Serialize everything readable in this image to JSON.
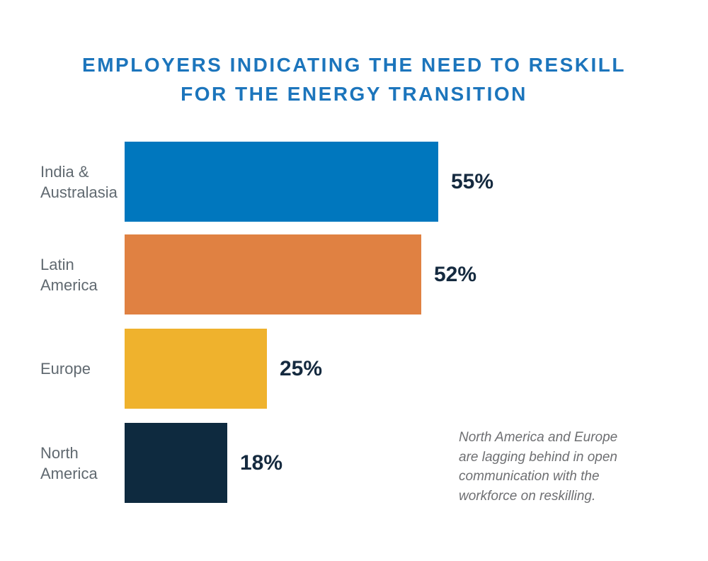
{
  "title": {
    "text": "EMPLOYERS INDICATING THE NEED TO RESKILL\nFOR THE ENERGY TRANSITION",
    "color": "#1C75BC"
  },
  "colors": {
    "label_text": "#606970",
    "value_text": "#152A3F",
    "note_text": "#6E6F72",
    "background": "#FFFFFF"
  },
  "chart_data": {
    "type": "bar",
    "orientation": "horizontal",
    "title": "EMPLOYERS INDICATING THE NEED TO RESKILL FOR THE ENERGY TRANSITION",
    "categories": [
      "India & Australasia",
      "Latin America",
      "Europe",
      "North America"
    ],
    "values": [
      55,
      52,
      25,
      18
    ],
    "unit": "%",
    "xlim": [
      0,
      100
    ],
    "grid": false,
    "legend": false,
    "rows": [
      {
        "label": "India &\nAustralasia",
        "value": 55,
        "value_label": "55%",
        "color": "#0077BE"
      },
      {
        "label": "Latin\nAmerica",
        "value": 52,
        "value_label": "52%",
        "color": "#E08142"
      },
      {
        "label": "Europe",
        "value": 25,
        "value_label": "25%",
        "color": "#EFB22D"
      },
      {
        "label": "North\nAmerica",
        "value": 18,
        "value_label": "18%",
        "color": "#0E2A3F"
      }
    ],
    "annotation": "North America and Europe\nare lagging behind in open\ncommunication with the\nworkforce on reskilling."
  }
}
